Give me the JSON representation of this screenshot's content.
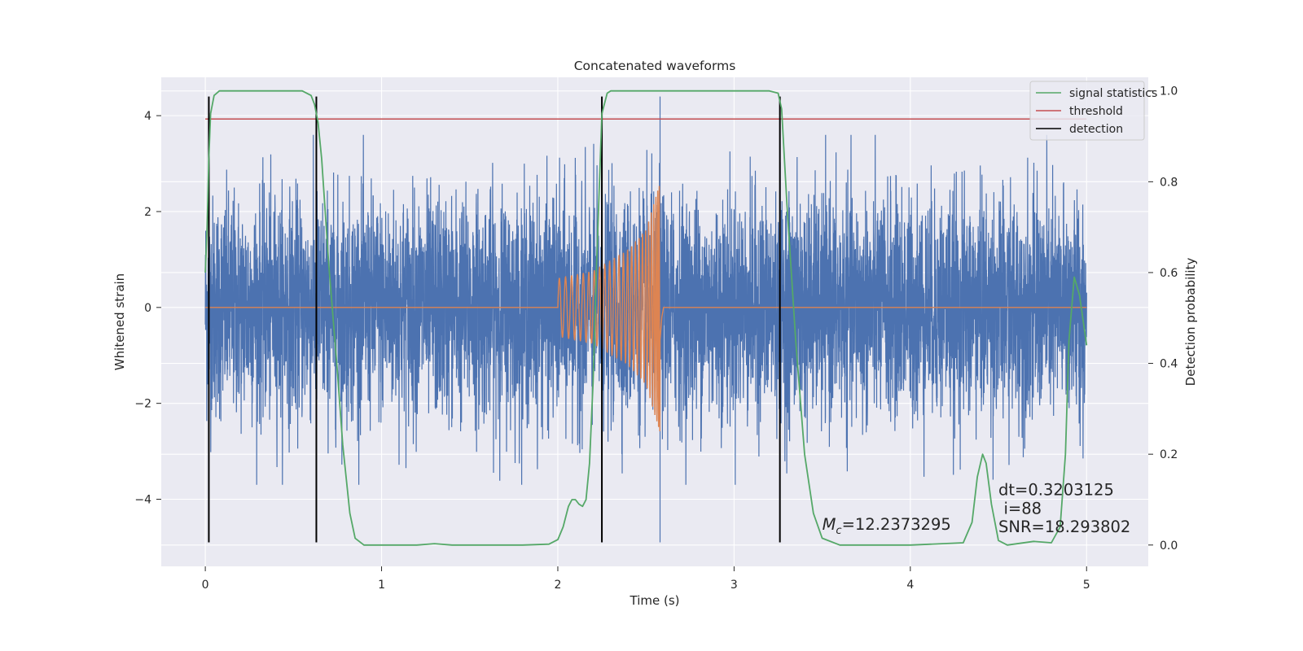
{
  "chart_data": {
    "type": "line",
    "title": "Concatenated waveforms",
    "xlabel": "Time (s)",
    "ylabel_left": "Whitened strain",
    "ylabel_right": "Detection probability",
    "xlim": [
      -0.25,
      5.35
    ],
    "ylim_left": [
      -5.4,
      4.8
    ],
    "ylim_right": [
      -0.047,
      1.03
    ],
    "x_ticks": [
      0,
      1,
      2,
      3,
      4,
      5
    ],
    "x_tick_labels": [
      "0",
      "1",
      "2",
      "3",
      "4",
      "5"
    ],
    "y_left_ticks": [
      -4,
      -2,
      0,
      2,
      4
    ],
    "y_left_tick_labels": [
      "−4",
      "−2",
      "0",
      "2",
      "4"
    ],
    "y_right_ticks": [
      0.0,
      0.2,
      0.4,
      0.6,
      0.8,
      1.0
    ],
    "y_right_tick_labels": [
      "0.0",
      "0.2",
      "0.4",
      "0.6",
      "0.8",
      "1.0"
    ],
    "grid": true,
    "legend_position": "top-right",
    "legend": [
      {
        "label": "signal statistics",
        "color": "#55a868"
      },
      {
        "label": "threshold",
        "color": "#c44e52"
      },
      {
        "label": "detection",
        "color": "#000000"
      }
    ],
    "series": [
      {
        "name": "whitened noise",
        "axis": "left",
        "color": "#4c72b0",
        "kind": "noise",
        "x_range": [
          0,
          5
        ],
        "spread_sigma": 1.15,
        "peak_min": -3.7,
        "peak_max": 3.6,
        "spike": {
          "x": 2.58,
          "min": -4.9,
          "max": 4.4
        }
      },
      {
        "name": "injected chirp",
        "axis": "left",
        "color": "#dd8452",
        "kind": "chirp",
        "flat_value": 0,
        "chirp_start": 2.0,
        "chirp_end": 2.58,
        "envelope": [
          [
            2.0,
            0.6
          ],
          [
            2.2,
            0.75
          ],
          [
            2.4,
            1.2
          ],
          [
            2.5,
            1.6
          ],
          [
            2.58,
            2.6
          ]
        ]
      },
      {
        "name": "signal statistics",
        "axis": "right",
        "color": "#55a868",
        "x": [
          0.0,
          0.01,
          0.02,
          0.03,
          0.05,
          0.08,
          0.1,
          0.2,
          0.4,
          0.55,
          0.6,
          0.62,
          0.64,
          0.66,
          0.7,
          0.75,
          0.78,
          0.82,
          0.85,
          0.9,
          1.2,
          1.3,
          1.4,
          1.8,
          1.95,
          2.0,
          2.03,
          2.06,
          2.08,
          2.1,
          2.12,
          2.14,
          2.16,
          2.18,
          2.2,
          2.22,
          2.25,
          2.28,
          2.3,
          2.4,
          3.0,
          3.2,
          3.25,
          3.27,
          3.3,
          3.35,
          3.4,
          3.45,
          3.5,
          3.6,
          4.0,
          4.3,
          4.35,
          4.38,
          4.41,
          4.43,
          4.46,
          4.5,
          4.55,
          4.7,
          4.8,
          4.85,
          4.88,
          4.9,
          4.93,
          4.96,
          5.0
        ],
        "y": [
          0.6,
          0.7,
          0.85,
          0.95,
          0.99,
          1.0,
          1.0,
          1.0,
          1.0,
          1.0,
          0.99,
          0.97,
          0.93,
          0.85,
          0.62,
          0.38,
          0.22,
          0.07,
          0.015,
          0.0,
          0.0,
          0.003,
          0.0,
          0.0,
          0.002,
          0.012,
          0.04,
          0.085,
          0.1,
          0.1,
          0.09,
          0.085,
          0.1,
          0.18,
          0.36,
          0.62,
          0.95,
          0.995,
          1.0,
          1.0,
          1.0,
          1.0,
          0.995,
          0.96,
          0.75,
          0.45,
          0.2,
          0.07,
          0.015,
          0.0,
          0.0,
          0.005,
          0.05,
          0.15,
          0.2,
          0.18,
          0.09,
          0.01,
          0.0,
          0.008,
          0.005,
          0.04,
          0.2,
          0.45,
          0.59,
          0.55,
          0.44
        ]
      },
      {
        "name": "threshold",
        "axis": "left",
        "color": "#c44e52",
        "x": [
          0,
          5
        ],
        "y": [
          3.93,
          3.93
        ]
      },
      {
        "name": "detection",
        "axis": "left",
        "color": "#000000",
        "vlines": [
          0.02,
          0.63,
          2.25,
          3.26
        ],
        "ymin": -4.9,
        "ymax": 4.4
      }
    ],
    "annotations": [
      {
        "text_mc_symbol": "M",
        "text_mc_sub": "c",
        "text": "=12.2373295",
        "x": 3.5,
        "y_axis_right": 0.03
      },
      {
        "text": "dt=0.3203125",
        "x": 4.5,
        "y_axis_right": 0.11
      },
      {
        "text": "i=88",
        "x": 4.53,
        "y_axis_right": 0.065
      },
      {
        "text": "SNR=18.293802",
        "x": 4.5,
        "y_axis_right": 0.025
      }
    ]
  }
}
